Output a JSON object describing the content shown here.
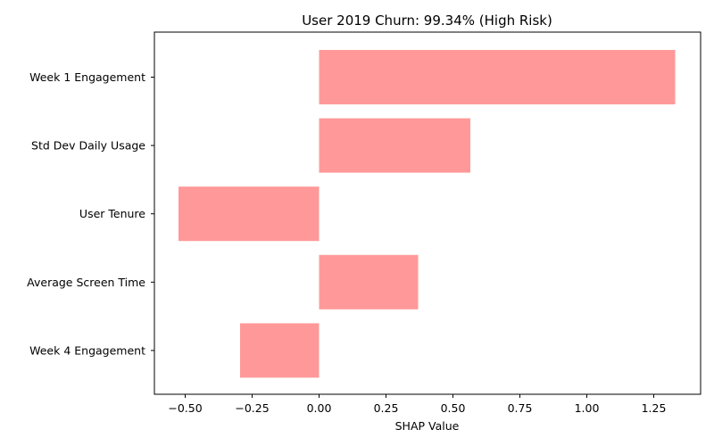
{
  "chart_data": {
    "type": "bar",
    "orientation": "horizontal",
    "title": "User 2019 Churn: 99.34% (High Risk)",
    "xlabel": "SHAP Value",
    "ylabel": "",
    "categories": [
      "Week 1 Engagement",
      "Std Dev Daily Usage",
      "User Tenure",
      "Average Screen Time",
      "Week 4 Engagement"
    ],
    "values": [
      1.33,
      0.565,
      -0.525,
      0.37,
      -0.295
    ],
    "xlim": [
      -0.615,
      1.425
    ],
    "xticks": [
      -0.5,
      -0.25,
      0.0,
      0.25,
      0.5,
      0.75,
      1.0,
      1.25
    ],
    "xtick_labels": [
      "−0.50",
      "−0.25",
      "0.00",
      "0.25",
      "0.50",
      "0.75",
      "1.00",
      "1.25"
    ],
    "grid": false,
    "legend": "none",
    "bar_color": "#ff9999"
  }
}
